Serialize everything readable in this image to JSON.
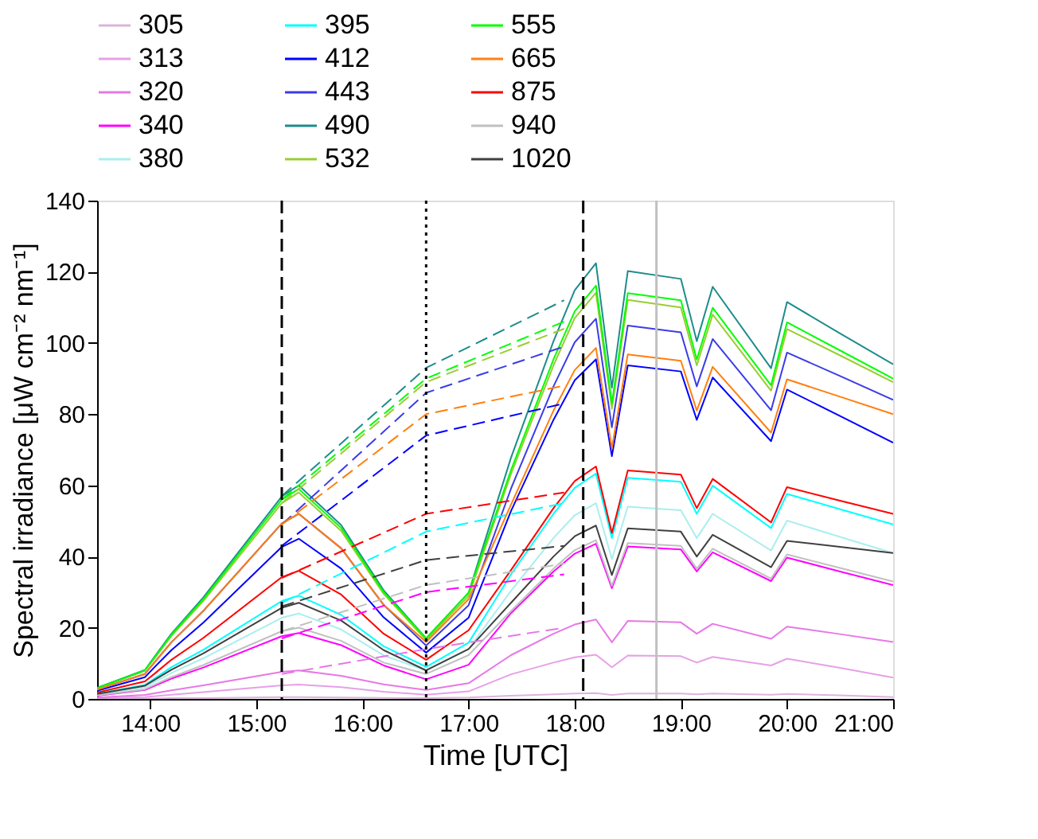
{
  "chart_data": {
    "type": "line",
    "xlabel": "Time [UTC]",
    "ylabel": "Spectral irradiance [μW cm⁻² nm⁻¹]",
    "x": [
      13.5,
      13.95,
      14.05,
      14.2,
      14.5,
      15.24,
      15.4,
      15.8,
      16.2,
      16.6,
      17.0,
      17.4,
      17.8,
      18.0,
      18.2,
      18.35,
      18.5,
      19.0,
      19.15,
      19.3,
      19.85,
      20.0,
      20.5,
      21.0
    ],
    "xlim": [
      13.5,
      21
    ],
    "xticks": [
      {
        "value": 14,
        "label": "14:00"
      },
      {
        "value": 15,
        "label": "15:00"
      },
      {
        "value": 16,
        "label": "16:00"
      },
      {
        "value": 17,
        "label": "17:00"
      },
      {
        "value": 18,
        "label": "18:00"
      },
      {
        "value": 19,
        "label": "19:00"
      },
      {
        "value": 20,
        "label": "20:00"
      },
      {
        "value": 21,
        "label": "21:00"
      }
    ],
    "ylim": [
      0,
      140
    ],
    "yticks": [
      0,
      20,
      40,
      60,
      80,
      100,
      120,
      140
    ],
    "grid": false,
    "legend": "top",
    "line_style": "solid",
    "marker": "none",
    "series": [
      {
        "name": "305",
        "color": "#dcb4dc",
        "values": [
          0,
          0.1,
          0.1,
          0.2,
          0.2,
          0.5,
          0.5,
          0.4,
          0.3,
          0.2,
          0.4,
          0.9,
          1.3,
          1.5,
          1.6,
          1.1,
          1.5,
          1.5,
          1.3,
          1.5,
          1.2,
          1.4,
          1.0,
          0.5
        ]
      },
      {
        "name": "313",
        "color": "#e6a0e6",
        "values": [
          0.2,
          0.5,
          0.8,
          1.2,
          1.9,
          3.8,
          4,
          3.3,
          2,
          1.2,
          2.1,
          6.9,
          10.2,
          11.7,
          12.4,
          8.9,
          12.2,
          12,
          10.2,
          11.8,
          9.4,
          11.3,
          8.7,
          6
        ]
      },
      {
        "name": "320",
        "color": "#e678e6",
        "values": [
          0.4,
          1.1,
          1.6,
          2.4,
          3.8,
          7.6,
          8,
          6.5,
          4.1,
          2.5,
          4.4,
          12.3,
          18.3,
          20.9,
          22.3,
          15.9,
          21.9,
          21.5,
          18.3,
          21.1,
          16.9,
          20.3,
          18.2,
          16
        ]
      },
      {
        "name": "340",
        "color": "#ff00ff",
        "values": [
          0.9,
          2.5,
          3.8,
          5.7,
          8.8,
          17.6,
          18.5,
          15.1,
          9.4,
          5.5,
          9.6,
          24.1,
          35.8,
          40.8,
          43.6,
          31.1,
          42.8,
          42,
          35.8,
          41.2,
          33.1,
          39.7,
          35.8,
          32
        ]
      },
      {
        "name": "380",
        "color": "#aaeeee",
        "values": [
          1.2,
          3.3,
          4.9,
          7.3,
          11.4,
          22.8,
          24,
          19.5,
          12.2,
          8,
          14,
          30.4,
          45.2,
          51.6,
          55,
          39.3,
          54,
          53,
          45.2,
          52,
          41.7,
          50.1,
          45.5,
          41
        ]
      },
      {
        "name": "395",
        "color": "#00ffff",
        "values": [
          1.5,
          3.9,
          5.9,
          8.9,
          13.8,
          27.5,
          29,
          23.6,
          14.8,
          9,
          15.8,
          35,
          52,
          59.3,
          63.3,
          45.2,
          62.1,
          61,
          52,
          59.9,
          48,
          57.6,
          53.3,
          49
        ]
      },
      {
        "name": "412",
        "color": "#0000ff",
        "values": [
          2.3,
          6.1,
          9.2,
          13.7,
          21.4,
          42.7,
          45,
          36.6,
          22.9,
          13,
          22.8,
          52.8,
          78.4,
          89.5,
          95.4,
          68.2,
          93.7,
          92,
          78.4,
          90.3,
          72.4,
          86.9,
          79.5,
          72
        ]
      },
      {
        "name": "443",
        "color": "#3c3ce6",
        "values": [
          2.6,
          7,
          10.6,
          15.9,
          24.7,
          49.3,
          52,
          42.3,
          26.4,
          15,
          26.3,
          59.1,
          87.8,
          100.2,
          106.8,
          76.3,
          104.9,
          103,
          87.8,
          101.1,
          81.1,
          97.3,
          90.7,
          84
        ]
      },
      {
        "name": "490",
        "color": "#1e8c8c",
        "values": [
          3.1,
          8.1,
          12.2,
          18.3,
          28.5,
          56.9,
          60,
          48.8,
          30.5,
          17,
          29.8,
          67.8,
          100.5,
          114.8,
          122.4,
          87.4,
          120.2,
          118,
          100.5,
          115.8,
          92.9,
          111.5,
          102.7,
          94
        ]
      },
      {
        "name": "532",
        "color": "#9acd32",
        "values": [
          2.9,
          7.9,
          11.8,
          17.7,
          27.5,
          55,
          58,
          47.2,
          29.5,
          16.5,
          28.9,
          63.2,
          93.7,
          107,
          114.1,
          81.5,
          112.1,
          110,
          93.7,
          108,
          86.6,
          103.9,
          96.5,
          89
        ]
      },
      {
        "name": "555",
        "color": "#00ff00",
        "values": [
          3,
          8,
          12,
          18,
          28,
          56,
          59,
          48,
          30,
          17,
          29.8,
          64.3,
          95.4,
          108.9,
          116.1,
          83,
          114,
          112,
          95.4,
          109.9,
          88.1,
          105.8,
          97.9,
          90
        ]
      },
      {
        "name": "665",
        "color": "#ff7f0e",
        "values": [
          2.6,
          7,
          10.6,
          15.9,
          24.7,
          49.3,
          52,
          42.3,
          26.4,
          16,
          28,
          54.6,
          81,
          92.4,
          98.6,
          70.4,
          96.8,
          95,
          81,
          93.3,
          74.8,
          89.8,
          84.9,
          80
        ]
      },
      {
        "name": "875",
        "color": "#ff0000",
        "values": [
          1.8,
          4.9,
          7.3,
          11,
          17.1,
          34.2,
          36,
          29.3,
          18.3,
          11,
          19.3,
          36.2,
          53.6,
          61.2,
          65.3,
          46.6,
          64.2,
          63,
          53.6,
          61.8,
          49.6,
          59.5,
          55.7,
          52
        ]
      },
      {
        "name": "940",
        "color": "#c0c0c0",
        "values": [
          1,
          2.7,
          4.1,
          6.1,
          9.5,
          19,
          20,
          16.3,
          10.2,
          7,
          12.3,
          24.7,
          36.6,
          41.8,
          44.6,
          31.8,
          43.8,
          43,
          36.6,
          42.2,
          33.8,
          40.6,
          36.8,
          33
        ]
      },
      {
        "name": "1020",
        "color": "#404040",
        "values": [
          1.4,
          3.7,
          5.5,
          8.2,
          12.8,
          25.6,
          27,
          22,
          13.7,
          8,
          14,
          27,
          40,
          45.7,
          48.7,
          34.8,
          47.9,
          47,
          40,
          46.1,
          37,
          44.4,
          42.7,
          41
        ]
      },
      {
        "color": "#1e8c8c",
        "line_style": "dashed",
        "x": [
          15.24,
          16.6,
          17.9
        ],
        "values": [
          57,
          93,
          112
        ]
      },
      {
        "color": "#00ff00",
        "line_style": "dashed",
        "x": [
          15.24,
          16.6,
          17.9
        ],
        "values": [
          56,
          90,
          106
        ]
      },
      {
        "color": "#9acd32",
        "line_style": "dashed",
        "x": [
          15.24,
          16.6,
          17.9
        ],
        "values": [
          55,
          89,
          104
        ]
      },
      {
        "color": "#3c3ce6",
        "line_style": "dashed",
        "x": [
          15.24,
          16.6,
          17.9
        ],
        "values": [
          49,
          86,
          99
        ]
      },
      {
        "color": "#ff7f0e",
        "line_style": "dashed",
        "x": [
          15.24,
          16.6,
          17.9
        ],
        "values": [
          49,
          80,
          88
        ]
      },
      {
        "color": "#0000ff",
        "line_style": "dashed",
        "x": [
          15.24,
          16.6,
          17.9
        ],
        "values": [
          43,
          74,
          83
        ]
      },
      {
        "color": "#ff0000",
        "line_style": "dashed",
        "x": [
          15.24,
          16.6,
          17.9
        ],
        "values": [
          34,
          52,
          58
        ]
      },
      {
        "color": "#00ffff",
        "line_style": "dashed",
        "x": [
          15.24,
          16.6,
          17.9
        ],
        "values": [
          27,
          47,
          55
        ]
      },
      {
        "color": "#404040",
        "line_style": "dashed",
        "x": [
          15.24,
          16.6,
          17.9
        ],
        "values": [
          26,
          39,
          43
        ]
      },
      {
        "color": "#c0c0c0",
        "line_style": "dashed",
        "x": [
          15.24,
          16.6,
          17.9
        ],
        "values": [
          19,
          32,
          38
        ]
      },
      {
        "color": "#ff00ff",
        "line_style": "dashed",
        "x": [
          15.24,
          16.6,
          17.9
        ],
        "values": [
          17,
          30,
          35
        ]
      },
      {
        "color": "#e678e6",
        "line_style": "dashed",
        "x": [
          15.24,
          16.6,
          17.9
        ],
        "values": [
          7,
          14,
          20
        ]
      }
    ],
    "ref_lines": [
      {
        "axis": "x",
        "value": 15.24,
        "color": "#000000",
        "line_style": "dashed"
      },
      {
        "axis": "x",
        "value": 16.6,
        "color": "#000000",
        "line_style": "dotted"
      },
      {
        "axis": "x",
        "value": 18.08,
        "color": "#000000",
        "line_style": "dashed"
      },
      {
        "axis": "x",
        "value": 18.77,
        "color": "#c0c0c0",
        "line_style": "solid"
      }
    ]
  }
}
